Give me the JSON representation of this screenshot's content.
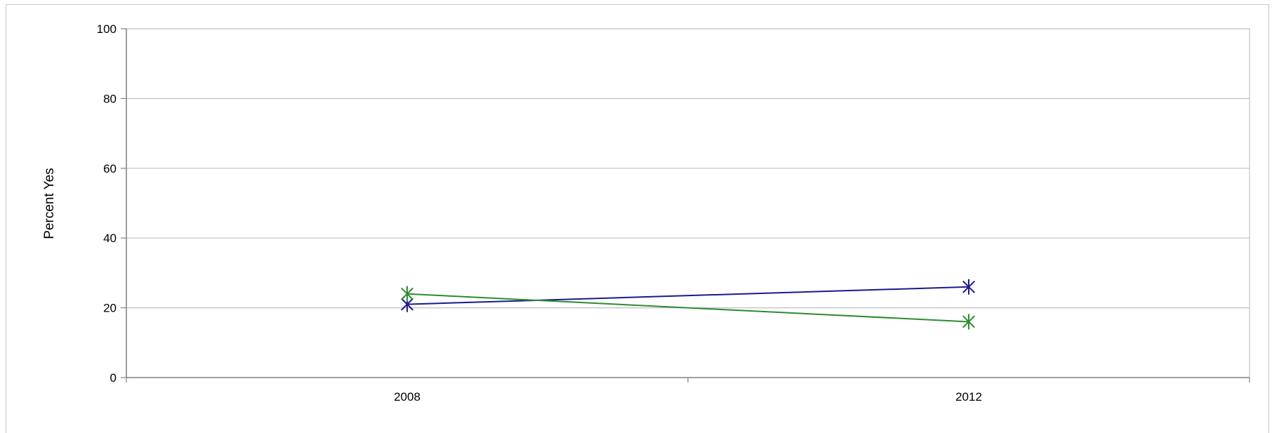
{
  "chart_data": {
    "type": "line",
    "title": "",
    "xlabel": "",
    "ylabel": "Percent Yes",
    "categories": [
      "2008",
      "2012"
    ],
    "ylim": [
      0,
      100
    ],
    "yticks": [
      0,
      20,
      40,
      60,
      80,
      100
    ],
    "grid": true,
    "legend": "none",
    "series": [
      {
        "color": "#1a1a8c",
        "marker": "star",
        "values": [
          21,
          26
        ]
      },
      {
        "color": "#2e8b2e",
        "marker": "star",
        "values": [
          24,
          16
        ]
      }
    ]
  }
}
